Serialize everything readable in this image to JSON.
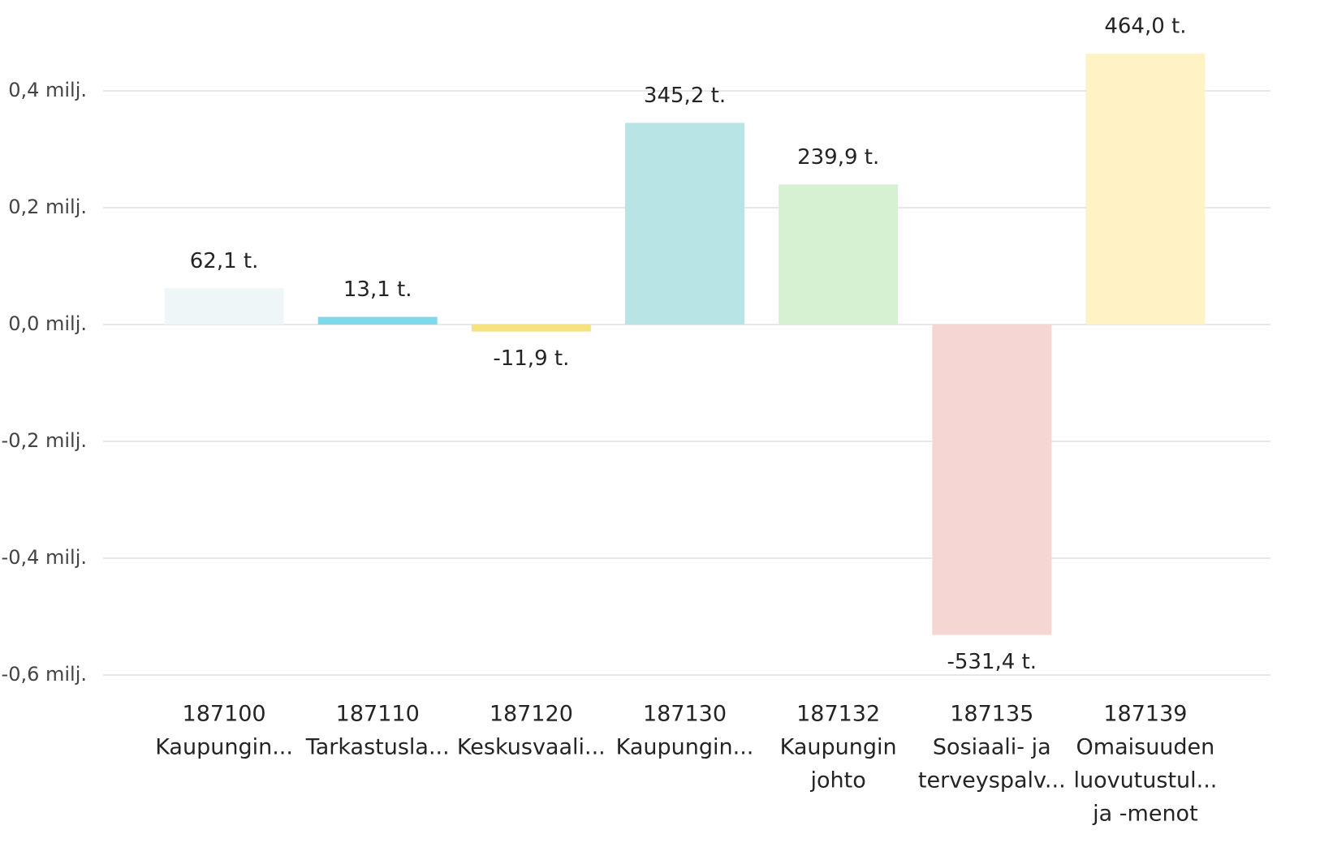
{
  "chart_data": {
    "type": "bar",
    "categories": [
      [
        "187100",
        "Kaupungin..."
      ],
      [
        "187110",
        "Tarkastusla..."
      ],
      [
        "187120",
        "Keskusvaali..."
      ],
      [
        "187130",
        "Kaupungin..."
      ],
      [
        "187132",
        "Kaupungin",
        "johto"
      ],
      [
        "187135",
        "Sosiaali- ja",
        "terveyspalv..."
      ],
      [
        "187139",
        "Omaisuuden",
        "luovutustul...",
        "ja -menot"
      ]
    ],
    "values": [
      0.0621,
      0.0131,
      -0.0119,
      0.3452,
      0.2399,
      -0.5314,
      0.464
    ],
    "value_labels": [
      "62,1 t.",
      "13,1 t.",
      "-11,9 t.",
      "345,2 t.",
      "239,9 t.",
      "-531,4 t.",
      "464,0 t."
    ],
    "colors": [
      "#eef6f8",
      "#7fd9ea",
      "#f6e27f",
      "#b8e4e6",
      "#d6f1d2",
      "#f6d6d2",
      "#fff2c4"
    ],
    "ylim": [
      -0.62,
      0.555
    ],
    "yticks": [
      {
        "value": 0.4,
        "label": "0,4 milj."
      },
      {
        "value": 0.2,
        "label": "0,2 milj."
      },
      {
        "value": 0,
        "label": "0,0 milj."
      },
      {
        "value": -0.2,
        "label": "-0,2 milj."
      },
      {
        "value": -0.4,
        "label": "-0,4 milj."
      },
      {
        "value": -0.6,
        "label": "-0,6 milj."
      }
    ],
    "grid": true
  }
}
